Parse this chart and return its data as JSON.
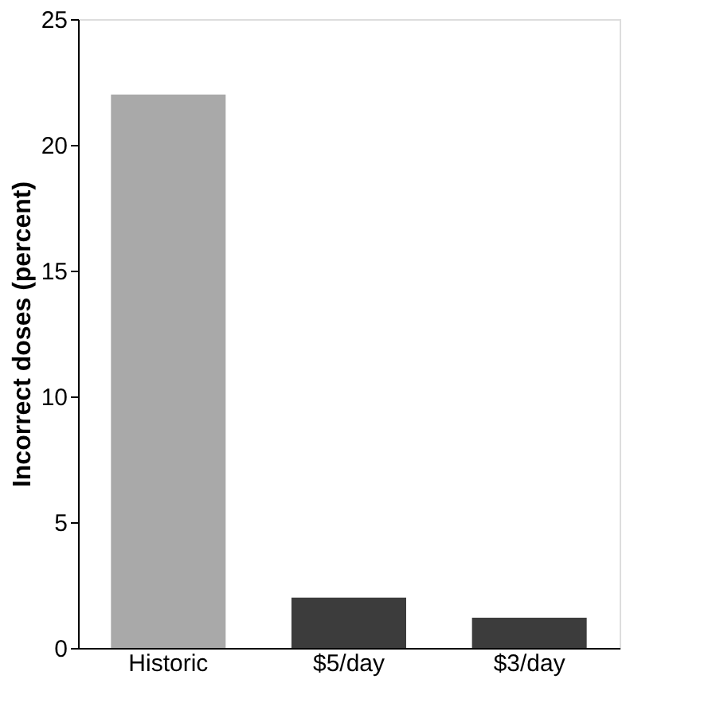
{
  "chart_data": {
    "type": "bar",
    "ylabel": "Incorrect doses (percent)",
    "categories": [
      "Historic",
      "$5/day",
      "$3/day"
    ],
    "values": [
      22,
      2,
      1.2
    ],
    "colors": [
      "#a9a9a9",
      "#3c3c3c",
      "#3c3c3c"
    ],
    "ylim": [
      0,
      25
    ],
    "yticks": [
      0,
      5,
      10,
      15,
      20,
      25
    ],
    "grid": false
  }
}
